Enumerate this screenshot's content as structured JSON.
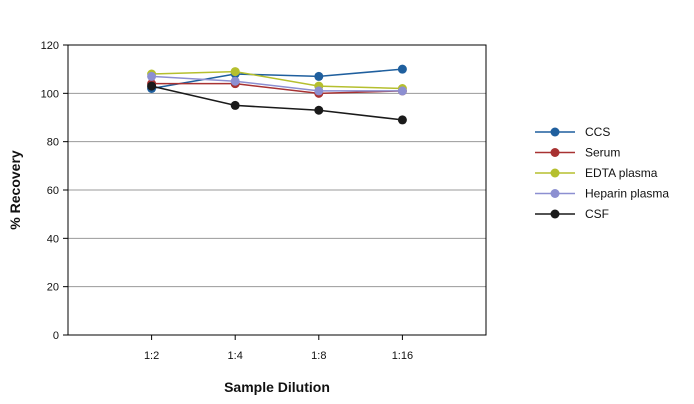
{
  "chart_data": {
    "type": "line",
    "xlabel": "Sample Dilution",
    "ylabel": "% Recovery",
    "categories": [
      "1:2",
      "1:4",
      "1:8",
      "1:16"
    ],
    "ylim": [
      0,
      120
    ],
    "yticks": [
      "0",
      "20",
      "40",
      "60",
      "80",
      "100",
      "120"
    ],
    "grid": true,
    "legend": "right",
    "series": [
      {
        "name": "CCS",
        "color": "#1f5f9e",
        "values": [
          102,
          108,
          107,
          110
        ]
      },
      {
        "name": "Serum",
        "color": "#a83232",
        "values": [
          104,
          104,
          100,
          101
        ]
      },
      {
        "name": "EDTA plasma",
        "color": "#b5bf2e",
        "values": [
          108,
          109,
          103,
          102
        ]
      },
      {
        "name": "Heparin plasma",
        "color": "#8c8fd1",
        "values": [
          107,
          105,
          101,
          101
        ]
      },
      {
        "name": "CSF",
        "color": "#1a1a1a",
        "values": [
          103,
          95,
          93,
          89
        ]
      }
    ]
  }
}
